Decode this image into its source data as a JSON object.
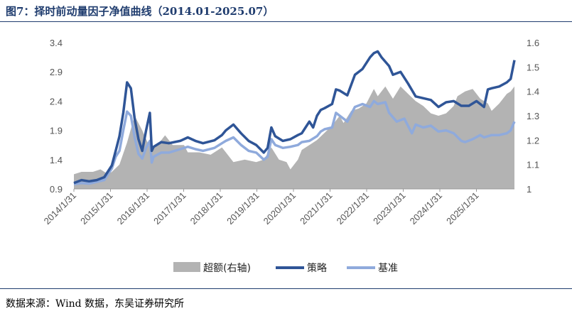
{
  "header": {
    "title": "图7：择时前动量因子净值曲线（2014.01-2025.07）"
  },
  "footer": {
    "source": "数据来源：Wind 数据，东吴证券研究所"
  },
  "colors": {
    "area": "#b3b3b3",
    "strategy": "#2f5597",
    "benchmark": "#8faadc",
    "title": "#1f3c6e"
  },
  "chart_data": {
    "type": "line",
    "title": "",
    "x_tick_labels": [
      "2014/1/31",
      "2015/1/31",
      "2016/1/31",
      "2017/1/31",
      "2018/1/31",
      "2019/1/31",
      "2020/1/31",
      "2021/1/31",
      "2022/1/31",
      "2023/1/31",
      "2024/1/31",
      "2025/1/31"
    ],
    "y_left": {
      "ticks": [
        "3.4",
        "2.9",
        "2.4",
        "1.9",
        "1.4",
        "0.9"
      ],
      "range": [
        0.9,
        3.4
      ]
    },
    "y_right": {
      "ticks": [
        "1.6",
        "1.5",
        "1.4",
        "1.3",
        "1.2",
        "1.1",
        "1"
      ],
      "range": [
        1.0,
        1.6
      ]
    },
    "legend": {
      "placement": "bottom",
      "items": [
        "超额(右轴)",
        "策略",
        "基准"
      ]
    },
    "series": [
      {
        "name": "超额(右轴)",
        "type": "area",
        "axis": "right",
        "points": [
          [
            2014.0,
            1.06
          ],
          [
            2014.2,
            1.07
          ],
          [
            2014.5,
            1.07
          ],
          [
            2014.7,
            1.08
          ],
          [
            2014.9,
            1.06
          ],
          [
            2015.0,
            1.07
          ],
          [
            2015.2,
            1.1
          ],
          [
            2015.4,
            1.19
          ],
          [
            2015.6,
            1.3
          ],
          [
            2015.8,
            1.24
          ],
          [
            2016.0,
            1.17
          ],
          [
            2016.2,
            1.18
          ],
          [
            2016.4,
            1.22
          ],
          [
            2016.6,
            1.18
          ],
          [
            2016.9,
            1.18
          ],
          [
            2017.0,
            1.15
          ],
          [
            2017.3,
            1.15
          ],
          [
            2017.6,
            1.14
          ],
          [
            2017.9,
            1.17
          ],
          [
            2018.0,
            1.15
          ],
          [
            2018.2,
            1.11
          ],
          [
            2018.5,
            1.12
          ],
          [
            2018.8,
            1.11
          ],
          [
            2019.0,
            1.12
          ],
          [
            2019.2,
            1.17
          ],
          [
            2019.4,
            1.12
          ],
          [
            2019.6,
            1.11
          ],
          [
            2019.7,
            1.08
          ],
          [
            2019.9,
            1.12
          ],
          [
            2020.0,
            1.16
          ],
          [
            2020.2,
            1.18
          ],
          [
            2020.4,
            1.2
          ],
          [
            2020.6,
            1.23
          ],
          [
            2020.8,
            1.26
          ],
          [
            2021.0,
            1.3
          ],
          [
            2021.1,
            1.27
          ],
          [
            2021.3,
            1.32
          ],
          [
            2021.5,
            1.33
          ],
          [
            2021.7,
            1.35
          ],
          [
            2021.9,
            1.41
          ],
          [
            2022.0,
            1.38
          ],
          [
            2022.2,
            1.42
          ],
          [
            2022.4,
            1.37
          ],
          [
            2022.6,
            1.42
          ],
          [
            2022.8,
            1.39
          ],
          [
            2023.0,
            1.36
          ],
          [
            2023.2,
            1.34
          ],
          [
            2023.4,
            1.31
          ],
          [
            2023.6,
            1.3
          ],
          [
            2023.8,
            1.31
          ],
          [
            2024.0,
            1.34
          ],
          [
            2024.1,
            1.38
          ],
          [
            2024.3,
            1.4
          ],
          [
            2024.5,
            1.41
          ],
          [
            2024.7,
            1.37
          ],
          [
            2024.9,
            1.35
          ],
          [
            2025.0,
            1.32
          ],
          [
            2025.2,
            1.35
          ],
          [
            2025.4,
            1.39
          ],
          [
            2025.5,
            1.4
          ],
          [
            2025.6,
            1.42
          ]
        ]
      },
      {
        "name": "策略",
        "type": "line",
        "axis": "left",
        "points": [
          [
            2014.0,
            1.0
          ],
          [
            2014.2,
            1.05
          ],
          [
            2014.4,
            1.03
          ],
          [
            2014.6,
            1.05
          ],
          [
            2014.8,
            1.1
          ],
          [
            2015.0,
            1.3
          ],
          [
            2015.1,
            1.55
          ],
          [
            2015.2,
            1.8
          ],
          [
            2015.3,
            2.2
          ],
          [
            2015.4,
            2.72
          ],
          [
            2015.5,
            2.62
          ],
          [
            2015.6,
            2.1
          ],
          [
            2015.7,
            1.75
          ],
          [
            2015.8,
            1.55
          ],
          [
            2015.9,
            1.9
          ],
          [
            2016.0,
            2.2
          ],
          [
            2016.05,
            1.55
          ],
          [
            2016.1,
            1.62
          ],
          [
            2016.3,
            1.7
          ],
          [
            2016.5,
            1.68
          ],
          [
            2016.8,
            1.72
          ],
          [
            2017.0,
            1.78
          ],
          [
            2017.2,
            1.72
          ],
          [
            2017.4,
            1.68
          ],
          [
            2017.7,
            1.73
          ],
          [
            2017.9,
            1.82
          ],
          [
            2018.0,
            1.9
          ],
          [
            2018.2,
            2.0
          ],
          [
            2018.4,
            1.85
          ],
          [
            2018.6,
            1.72
          ],
          [
            2018.8,
            1.65
          ],
          [
            2019.0,
            1.52
          ],
          [
            2019.1,
            1.6
          ],
          [
            2019.2,
            1.95
          ],
          [
            2019.3,
            1.8
          ],
          [
            2019.5,
            1.72
          ],
          [
            2019.7,
            1.75
          ],
          [
            2019.9,
            1.82
          ],
          [
            2020.0,
            1.85
          ],
          [
            2020.1,
            1.95
          ],
          [
            2020.2,
            2.05
          ],
          [
            2020.3,
            1.95
          ],
          [
            2020.4,
            2.15
          ],
          [
            2020.5,
            2.25
          ],
          [
            2020.6,
            2.28
          ],
          [
            2020.8,
            2.35
          ],
          [
            2020.9,
            2.6
          ],
          [
            2021.0,
            2.58
          ],
          [
            2021.2,
            2.5
          ],
          [
            2021.4,
            2.85
          ],
          [
            2021.6,
            2.95
          ],
          [
            2021.8,
            3.15
          ],
          [
            2021.9,
            3.22
          ],
          [
            2022.0,
            3.25
          ],
          [
            2022.1,
            3.15
          ],
          [
            2022.3,
            3.0
          ],
          [
            2022.4,
            2.85
          ],
          [
            2022.6,
            2.9
          ],
          [
            2022.8,
            2.7
          ],
          [
            2023.0,
            2.48
          ],
          [
            2023.2,
            2.45
          ],
          [
            2023.4,
            2.42
          ],
          [
            2023.6,
            2.3
          ],
          [
            2023.8,
            2.38
          ],
          [
            2024.0,
            2.4
          ],
          [
            2024.2,
            2.32
          ],
          [
            2024.4,
            2.32
          ],
          [
            2024.6,
            2.4
          ],
          [
            2024.8,
            2.3
          ],
          [
            2024.9,
            2.6
          ],
          [
            2025.0,
            2.62
          ],
          [
            2025.2,
            2.65
          ],
          [
            2025.4,
            2.72
          ],
          [
            2025.5,
            2.78
          ],
          [
            2025.6,
            3.1
          ]
        ]
      },
      {
        "name": "基准",
        "type": "line",
        "axis": "left",
        "points": [
          [
            2014.0,
            0.98
          ],
          [
            2014.2,
            1.0
          ],
          [
            2014.4,
            0.99
          ],
          [
            2014.6,
            1.02
          ],
          [
            2014.8,
            1.05
          ],
          [
            2015.0,
            1.25
          ],
          [
            2015.1,
            1.45
          ],
          [
            2015.2,
            1.55
          ],
          [
            2015.3,
            1.9
          ],
          [
            2015.4,
            2.22
          ],
          [
            2015.5,
            2.15
          ],
          [
            2015.6,
            1.78
          ],
          [
            2015.7,
            1.5
          ],
          [
            2015.8,
            1.42
          ],
          [
            2015.9,
            1.6
          ],
          [
            2016.0,
            1.72
          ],
          [
            2016.05,
            1.35
          ],
          [
            2016.1,
            1.45
          ],
          [
            2016.3,
            1.52
          ],
          [
            2016.5,
            1.52
          ],
          [
            2016.8,
            1.58
          ],
          [
            2017.0,
            1.62
          ],
          [
            2017.2,
            1.58
          ],
          [
            2017.4,
            1.55
          ],
          [
            2017.7,
            1.6
          ],
          [
            2017.9,
            1.68
          ],
          [
            2018.0,
            1.72
          ],
          [
            2018.2,
            1.78
          ],
          [
            2018.4,
            1.65
          ],
          [
            2018.6,
            1.55
          ],
          [
            2018.8,
            1.52
          ],
          [
            2019.0,
            1.4
          ],
          [
            2019.1,
            1.45
          ],
          [
            2019.2,
            1.75
          ],
          [
            2019.3,
            1.65
          ],
          [
            2019.5,
            1.6
          ],
          [
            2019.7,
            1.62
          ],
          [
            2019.9,
            1.65
          ],
          [
            2020.0,
            1.7
          ],
          [
            2020.2,
            1.72
          ],
          [
            2020.4,
            1.8
          ],
          [
            2020.5,
            1.88
          ],
          [
            2020.6,
            1.92
          ],
          [
            2020.8,
            1.95
          ],
          [
            2020.9,
            2.2
          ],
          [
            2021.0,
            2.15
          ],
          [
            2021.2,
            2.05
          ],
          [
            2021.4,
            2.3
          ],
          [
            2021.6,
            2.35
          ],
          [
            2021.8,
            2.3
          ],
          [
            2021.9,
            2.4
          ],
          [
            2022.0,
            2.35
          ],
          [
            2022.2,
            2.38
          ],
          [
            2022.3,
            2.2
          ],
          [
            2022.5,
            2.05
          ],
          [
            2022.7,
            2.1
          ],
          [
            2022.9,
            1.85
          ],
          [
            2023.0,
            2.0
          ],
          [
            2023.2,
            1.95
          ],
          [
            2023.4,
            1.98
          ],
          [
            2023.6,
            1.88
          ],
          [
            2023.8,
            1.9
          ],
          [
            2024.0,
            1.85
          ],
          [
            2024.2,
            1.72
          ],
          [
            2024.3,
            1.7
          ],
          [
            2024.5,
            1.75
          ],
          [
            2024.7,
            1.82
          ],
          [
            2024.8,
            1.78
          ],
          [
            2025.0,
            1.82
          ],
          [
            2025.2,
            1.82
          ],
          [
            2025.4,
            1.85
          ],
          [
            2025.5,
            1.9
          ],
          [
            2025.6,
            2.05
          ]
        ]
      }
    ]
  }
}
